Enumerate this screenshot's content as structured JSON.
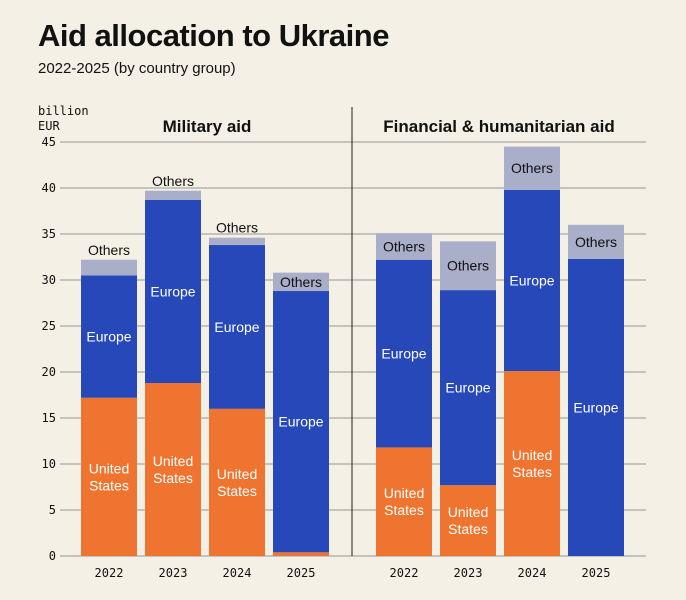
{
  "title": "Aid allocation to Ukraine",
  "subtitle": "2022-2025 (by country group)",
  "colors": {
    "United States": "#ee7430",
    "Europe": "#2648b8",
    "Others": "#a9aec9",
    "background": "#f5f0e6"
  },
  "chart_data": {
    "type": "bar",
    "stacked": true,
    "ylabel": "billion EUR",
    "ylim": [
      0,
      45
    ],
    "yticks": [
      0,
      5,
      10,
      15,
      20,
      25,
      30,
      35,
      40,
      45
    ],
    "grid": true,
    "panels": [
      {
        "title": "Military aid",
        "categories": [
          "2022",
          "2023",
          "2024",
          "2025"
        ],
        "series": [
          {
            "name": "United States",
            "values": [
              17.2,
              18.8,
              16.0,
              0.4
            ]
          },
          {
            "name": "Europe",
            "values": [
              13.3,
              19.9,
              17.8,
              28.4
            ]
          },
          {
            "name": "Others",
            "values": [
              1.7,
              1.0,
              0.8,
              2.0
            ]
          }
        ]
      },
      {
        "title": "Financial & humanitarian aid",
        "categories": [
          "2022",
          "2023",
          "2024",
          "2025"
        ],
        "series": [
          {
            "name": "United States",
            "values": [
              11.8,
              7.7,
              20.1,
              0
            ]
          },
          {
            "name": "Europe",
            "values": [
              20.4,
              21.2,
              19.7,
              32.3
            ]
          },
          {
            "name": "Others",
            "values": [
              2.9,
              5.3,
              4.7,
              3.7
            ]
          }
        ]
      }
    ]
  }
}
